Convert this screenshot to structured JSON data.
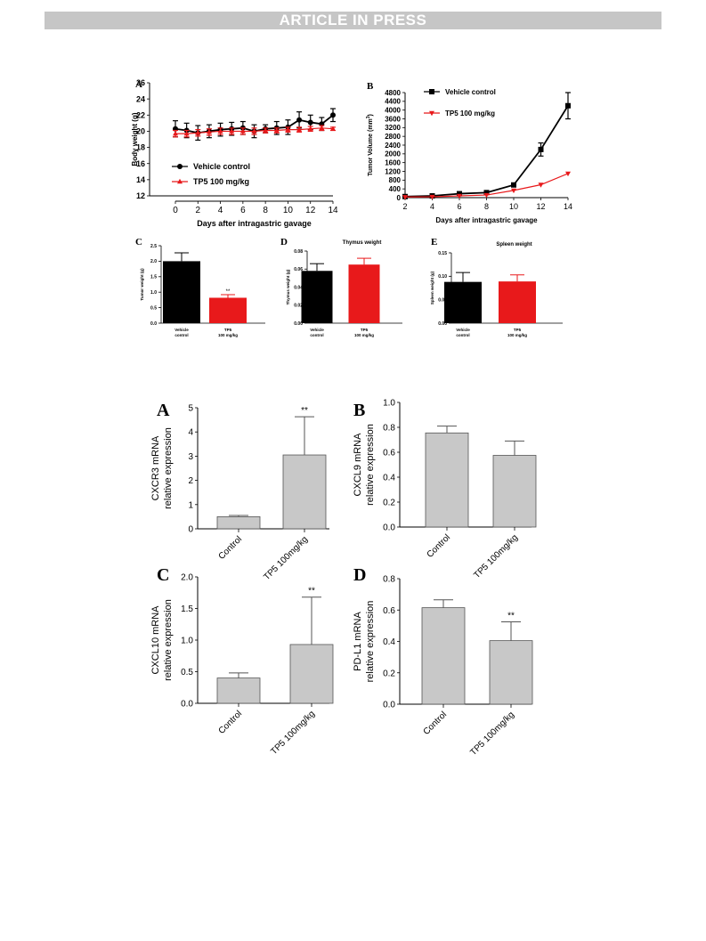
{
  "header": {
    "banner": "ARTICLE IN PRESS"
  },
  "chart_data": [
    {
      "panel": "A",
      "type": "line",
      "x": [
        0,
        1,
        2,
        3,
        4,
        5,
        6,
        7,
        8,
        9,
        10,
        11,
        12,
        13,
        14
      ],
      "xlabel": "Days after intragastric gavage",
      "ylabel": "Body weight (g)",
      "xlim": [
        0,
        14
      ],
      "ylim": [
        12,
        26
      ],
      "xticks": [
        "0",
        "2",
        "4",
        "6",
        "8",
        "10",
        "12",
        "14"
      ],
      "yticks": [
        "12",
        "14",
        "16",
        "18",
        "20",
        "22",
        "24",
        "26"
      ],
      "legend_position": "lower-left",
      "series": [
        {
          "name": "Vehicle control",
          "color": "#000000",
          "marker": "circle",
          "values": [
            20.3,
            20.1,
            19.8,
            20.0,
            20.2,
            20.3,
            20.4,
            20.0,
            20.3,
            20.4,
            20.5,
            21.4,
            21.1,
            20.9,
            22.0
          ],
          "errors": [
            1.0,
            0.9,
            0.9,
            0.8,
            0.8,
            0.8,
            0.8,
            0.8,
            0.5,
            0.8,
            0.9,
            1.0,
            0.9,
            0.8,
            0.8
          ]
        },
        {
          "name": "TP5 100 mg/kg",
          "color": "#e8191b",
          "marker": "triangle",
          "values": [
            19.7,
            19.7,
            19.8,
            19.9,
            20.0,
            20.0,
            20.0,
            20.0,
            20.1,
            20.1,
            20.2,
            20.2,
            20.3,
            20.4,
            20.3
          ],
          "errors": [
            0.4,
            0.4,
            0.4,
            0.4,
            0.4,
            0.4,
            0.4,
            0.4,
            0.3,
            0.3,
            0.3,
            0.3,
            0.3,
            0.3,
            0.2
          ]
        }
      ]
    },
    {
      "panel": "B",
      "type": "line",
      "x": [
        2,
        4,
        6,
        8,
        10,
        12,
        14
      ],
      "xlabel": "Days after intragastric gavage",
      "ylabel": "Tumor Volume (mm",
      "ylabel_sup": "3",
      "ylabel_tail": ")",
      "xlim": [
        2,
        14
      ],
      "ylim": [
        0,
        4800
      ],
      "xticks": [
        "2",
        "4",
        "6",
        "8",
        "10",
        "12",
        "14"
      ],
      "yticks": [
        "0",
        "400",
        "800",
        "1200",
        "1600",
        "2000",
        "2400",
        "2800",
        "3200",
        "3600",
        "4000",
        "4400",
        "4800"
      ],
      "legend_position": "top-left",
      "series": [
        {
          "name": "Vehicle control",
          "color": "#000000",
          "marker": "square",
          "values": [
            50,
            80,
            180,
            230,
            580,
            2200,
            4200
          ],
          "errors": [
            0,
            0,
            30,
            40,
            60,
            300,
            600
          ]
        },
        {
          "name": "TP5 100 mg/kg",
          "color": "#e8191b",
          "marker": "triangle-down",
          "values": [
            30,
            40,
            80,
            120,
            330,
            590,
            1100
          ],
          "errors": [
            0,
            0,
            0,
            0,
            0,
            0,
            0
          ]
        }
      ]
    },
    {
      "panel": "C",
      "type": "bar",
      "ylabel": "Tumor weight (g)",
      "ylim": [
        0,
        2.5
      ],
      "yticks": [
        "0.0",
        "0.5",
        "1.0",
        "1.5",
        "2.0",
        "2.5"
      ],
      "categories": [
        "Vehicle",
        "TP5"
      ],
      "categories_line2": [
        "control",
        "100 mg/kg"
      ],
      "values": [
        2.0,
        0.82
      ],
      "errors": [
        0.27,
        0.1
      ],
      "colors": [
        "#000000",
        "#e8191b"
      ],
      "significance": [
        "",
        "**"
      ]
    },
    {
      "panel": "D",
      "type": "bar",
      "title": "Thymus weight",
      "ylabel": "Thymus weight (g)",
      "ylim": [
        0,
        0.08
      ],
      "yticks": [
        "0.00",
        "0.02",
        "0.04",
        "0.06",
        "0.08"
      ],
      "categories": [
        "Vehicle",
        "TP5"
      ],
      "categories_line2": [
        "control",
        "100 mg/kg"
      ],
      "values": [
        0.058,
        0.065
      ],
      "errors": [
        0.008,
        0.007
      ],
      "colors": [
        "#000000",
        "#e8191b"
      ],
      "significance": [
        "",
        ""
      ]
    },
    {
      "panel": "E",
      "type": "bar",
      "title": "Spleen weight",
      "ylabel": "Spleen weight (g)",
      "ylim": [
        0,
        0.15
      ],
      "yticks": [
        "0.00",
        "0.05",
        "0.10",
        "0.15"
      ],
      "categories": [
        "Vehicle",
        "TP5"
      ],
      "categories_line2": [
        "control",
        "100 mg/kg"
      ],
      "values": [
        0.088,
        0.089
      ],
      "errors": [
        0.02,
        0.014
      ],
      "colors": [
        "#000000",
        "#e8191b"
      ],
      "significance": [
        "",
        ""
      ]
    },
    {
      "panel": "A",
      "type": "bar",
      "ylabel": "CXCR3 mRNA",
      "ylabel_line2": "relative  expression",
      "ylim": [
        0,
        5
      ],
      "yticks": [
        "0",
        "1",
        "2",
        "3",
        "4",
        "5"
      ],
      "categories": [
        "Control",
        "TP5 100mg/kg"
      ],
      "values": [
        0.5,
        3.05
      ],
      "errors": [
        0.05,
        1.58
      ],
      "colors": [
        "#c8c8c8",
        "#c8c8c8"
      ],
      "significance": [
        "",
        "**"
      ]
    },
    {
      "panel": "B",
      "type": "bar",
      "ylabel": "CXCL9 mRNA",
      "ylabel_line2": "relative  expression",
      "ylim": [
        0,
        1.0
      ],
      "yticks": [
        "0.0",
        "0.2",
        "0.4",
        "0.6",
        "0.8",
        "1.0"
      ],
      "categories": [
        "Control",
        "TP5 100mg/kg"
      ],
      "values": [
        0.755,
        0.575
      ],
      "errors": [
        0.055,
        0.115
      ],
      "colors": [
        "#c8c8c8",
        "#c8c8c8"
      ],
      "significance": [
        "",
        ""
      ]
    },
    {
      "panel": "C",
      "type": "bar",
      "ylabel": "CXCL10 mRNA",
      "ylabel_line2": "relative  expression",
      "ylim": [
        0,
        2.0
      ],
      "yticks": [
        "0.0",
        "0.5",
        "1.0",
        "1.5",
        "2.0"
      ],
      "categories": [
        "Control",
        "TP5 100mg/kg"
      ],
      "values": [
        0.4,
        0.93
      ],
      "errors": [
        0.08,
        0.75
      ],
      "colors": [
        "#c8c8c8",
        "#c8c8c8"
      ],
      "significance": [
        "",
        "**"
      ]
    },
    {
      "panel": "D",
      "type": "bar",
      "ylabel": "PD-L1 mRNA",
      "ylabel_line2": "relative  expression",
      "ylim": [
        0,
        0.8
      ],
      "yticks": [
        "0.0",
        "0.2",
        "0.4",
        "0.6",
        "0.8"
      ],
      "categories": [
        "Control",
        "TP5 100mg/kg"
      ],
      "values": [
        0.615,
        0.405
      ],
      "errors": [
        0.05,
        0.12
      ],
      "colors": [
        "#c8c8c8",
        "#c8c8c8"
      ],
      "significance": [
        "",
        "**"
      ]
    }
  ]
}
